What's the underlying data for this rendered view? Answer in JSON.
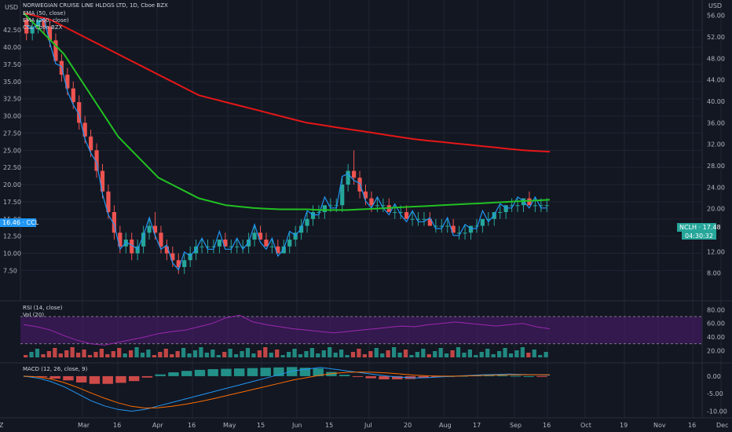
{
  "header": {
    "left_axis_unit": "USD",
    "right_axis_unit": "USD",
    "symbol_title": "NORWEGIAN CRUISE LINE HLDGS LTD, 1D, Cboe BZX",
    "legend": [
      "EMA (50, close)",
      "EMA (200, close)",
      "CCL Cboe BZX"
    ]
  },
  "colors": {
    "background": "#131722",
    "grid": "#1f2433",
    "up": "#26a69a",
    "down": "#ef5350",
    "ema50": "#22c122",
    "ema200": "#e51717",
    "ccl": "#2196f3",
    "rsi": "#9c27b0",
    "rsi_band": "#4a1a6a",
    "macd": "#2196f3",
    "signal": "#ff6d00",
    "badge_blue": "#2196f3",
    "badge_green": "#26a69a"
  },
  "price_badges": {
    "ccl_label": "16.46 · CCL",
    "nclh_label": "NCLH · 17.48",
    "countdown": "04:30:32"
  },
  "left_axis_ticks": [
    "42.50",
    "40.00",
    "37.50",
    "35.00",
    "32.50",
    "30.00",
    "27.50",
    "25.00",
    "22.50",
    "20.00",
    "17.50",
    "15.00",
    "12.50",
    "10.00",
    "7.50"
  ],
  "right_axis_ticks": [
    "56.00",
    "52.00",
    "48.00",
    "44.00",
    "40.00",
    "36.00",
    "32.00",
    "28.00",
    "24.00",
    "20.00",
    "12.00",
    "8.00"
  ],
  "x_axis_labels": [
    "Z",
    "Mar",
    "16",
    "Apr",
    "16",
    "May",
    "15",
    "Jun",
    "15",
    "Jul",
    "20",
    "Aug",
    "17",
    "Sep",
    "16",
    "Oct",
    "19",
    "Nov",
    "16",
    "Dec"
  ],
  "rsi": {
    "title": "RSI (14, close)",
    "ticks": [
      "80.00",
      "60.00",
      "40.00",
      "20.00"
    ]
  },
  "vol": {
    "title": "Vol (20)"
  },
  "macd": {
    "title": "MACD (12, 26, close, 9)",
    "ticks": [
      "0.00",
      "-5.00",
      "-10.00"
    ]
  },
  "chart_data": {
    "type": "candlestick",
    "symbol": "NCLH",
    "period": "1D",
    "price_range": [
      4,
      56
    ],
    "candles": [
      [
        44,
        45,
        41,
        42
      ],
      [
        42,
        44,
        41,
        43
      ],
      [
        43,
        44,
        42,
        44
      ],
      [
        44,
        44,
        42,
        43
      ],
      [
        43,
        44,
        40,
        41
      ],
      [
        41,
        42,
        38,
        38
      ],
      [
        38,
        39,
        35,
        36
      ],
      [
        36,
        37,
        33,
        34
      ],
      [
        34,
        35,
        31,
        32
      ],
      [
        32,
        33,
        28,
        29
      ],
      [
        29,
        30,
        26,
        27
      ],
      [
        27,
        28,
        24,
        25
      ],
      [
        25,
        26,
        21,
        22
      ],
      [
        22,
        23,
        18,
        19
      ],
      [
        19,
        20,
        15,
        16
      ],
      [
        16,
        17,
        12,
        13
      ],
      [
        13,
        14,
        10,
        11
      ],
      [
        11,
        13,
        10,
        12
      ],
      [
        12,
        13,
        9,
        10
      ],
      [
        10,
        12,
        9,
        11
      ],
      [
        11,
        14,
        10,
        13
      ],
      [
        13,
        15,
        12,
        14
      ],
      [
        14,
        16,
        12,
        13
      ],
      [
        13,
        14,
        10,
        11
      ],
      [
        11,
        12,
        9,
        10
      ],
      [
        10,
        11,
        8,
        9
      ],
      [
        9,
        10,
        7,
        8
      ],
      [
        8,
        10,
        7,
        9
      ],
      [
        9,
        11,
        8,
        10
      ],
      [
        10,
        12,
        9,
        11
      ],
      [
        11,
        12,
        10,
        11
      ],
      [
        11,
        12,
        10,
        11
      ],
      [
        11,
        12,
        10,
        11
      ],
      [
        11,
        12,
        10,
        12
      ],
      [
        12,
        13,
        11,
        11
      ],
      [
        11,
        12,
        10,
        11
      ],
      [
        11,
        12,
        10,
        11
      ],
      [
        11,
        12,
        10,
        11
      ],
      [
        11,
        13,
        10,
        12
      ],
      [
        12,
        14,
        11,
        13
      ],
      [
        13,
        14,
        12,
        12
      ],
      [
        12,
        13,
        11,
        11
      ],
      [
        11,
        12,
        10,
        11
      ],
      [
        11,
        12,
        10,
        10
      ],
      [
        10,
        12,
        10,
        11
      ],
      [
        11,
        13,
        10,
        12
      ],
      [
        12,
        14,
        11,
        13
      ],
      [
        13,
        15,
        12,
        14
      ],
      [
        14,
        16,
        13,
        15
      ],
      [
        15,
        17,
        14,
        16
      ],
      [
        16,
        17,
        15,
        16
      ],
      [
        16,
        17,
        15,
        17
      ],
      [
        17,
        18,
        16,
        17
      ],
      [
        17,
        18,
        16,
        17
      ],
      [
        17,
        21,
        16,
        20
      ],
      [
        20,
        23,
        19,
        22
      ],
      [
        22,
        25,
        20,
        21
      ],
      [
        21,
        22,
        18,
        19
      ],
      [
        19,
        20,
        17,
        18
      ],
      [
        18,
        19,
        16,
        17
      ],
      [
        17,
        18,
        16,
        17
      ],
      [
        17,
        18,
        16,
        17
      ],
      [
        17,
        18,
        16,
        16
      ],
      [
        16,
        17,
        15,
        16
      ],
      [
        16,
        17,
        15,
        16
      ],
      [
        16,
        17,
        15,
        15
      ],
      [
        15,
        16,
        14,
        15
      ],
      [
        15,
        16,
        14,
        15
      ],
      [
        15,
        16,
        14,
        15
      ],
      [
        15,
        16,
        14,
        14
      ],
      [
        14,
        15,
        13,
        14
      ],
      [
        14,
        15,
        13,
        14
      ],
      [
        14,
        15,
        13,
        14
      ],
      [
        14,
        15,
        13,
        13
      ],
      [
        13,
        14,
        12,
        13
      ],
      [
        13,
        14,
        12,
        13
      ],
      [
        13,
        14,
        12,
        14
      ],
      [
        14,
        15,
        13,
        14
      ],
      [
        14,
        15,
        13,
        15
      ],
      [
        15,
        16,
        14,
        15
      ],
      [
        15,
        16,
        14,
        16
      ],
      [
        16,
        17,
        15,
        16
      ],
      [
        16,
        17,
        15,
        17
      ],
      [
        17,
        18,
        16,
        17
      ],
      [
        17,
        18,
        16,
        17
      ],
      [
        17,
        18,
        16,
        18
      ],
      [
        18,
        19,
        17,
        17
      ],
      [
        17,
        18,
        16,
        17
      ],
      [
        17,
        18,
        16,
        17
      ],
      [
        17,
        18,
        16,
        17
      ]
    ],
    "ema50": [
      45,
      43,
      41,
      39,
      36,
      33,
      30,
      27,
      25,
      23,
      21,
      20,
      19,
      18,
      17.5,
      17,
      16.8,
      16.6,
      16.5,
      16.4,
      16.4,
      16.4,
      16.3,
      16.3,
      16.3,
      16.4,
      16.5,
      16.6,
      16.7,
      16.8,
      16.9,
      17,
      17.1,
      17.2,
      17.3,
      17.4,
      17.5,
      17.6,
      17.7,
      17.8
    ],
    "ema200": [
      45,
      44.5,
      44,
      43,
      42,
      41,
      40,
      39,
      38,
      37,
      36,
      35,
      34,
      33,
      32.5,
      32,
      31.5,
      31,
      30.5,
      30,
      29.5,
      29,
      28.7,
      28.4,
      28.1,
      27.8,
      27.5,
      27.2,
      26.9,
      26.6,
      26.4,
      26.2,
      26,
      25.8,
      25.6,
      25.4,
      25.2,
      25,
      24.9,
      24.8
    ],
    "rsi_values": [
      58,
      55,
      50,
      42,
      35,
      30,
      28,
      32,
      36,
      40,
      45,
      48,
      50,
      55,
      60,
      68,
      72,
      62,
      58,
      55,
      52,
      50,
      48,
      46,
      48,
      50,
      52,
      54,
      56,
      55,
      58,
      60,
      62,
      60,
      58,
      56,
      58,
      60,
      55,
      52
    ],
    "macd_values": [
      0,
      -0.5,
      -1.5,
      -3,
      -5,
      -7,
      -8.5,
      -9.5,
      -10,
      -9.5,
      -8.5,
      -7.5,
      -6.5,
      -5.5,
      -4.5,
      -3.5,
      -2.5,
      -1.5,
      -0.5,
      0.5,
      1.5,
      2,
      2.5,
      2,
      1.5,
      1,
      0.5,
      0,
      -0.3,
      -0.5,
      -0.4,
      -0.2,
      0,
      0.2,
      0.4,
      0.5,
      0.6,
      0.5,
      0.4,
      0.3
    ],
    "signal_values": [
      0,
      -0.2,
      -0.8,
      -1.8,
      -3.2,
      -4.8,
      -6.3,
      -7.6,
      -8.6,
      -9.1,
      -9,
      -8.6,
      -8,
      -7.3,
      -6.5,
      -5.6,
      -4.7,
      -3.8,
      -2.9,
      -2,
      -1.1,
      -0.4,
      0.3,
      0.8,
      1.1,
      1.2,
      1.1,
      0.9,
      0.6,
      0.3,
      0.1,
      0,
      0,
      0.1,
      0.2,
      0.3,
      0.4,
      0.4,
      0.4,
      0.4
    ]
  }
}
